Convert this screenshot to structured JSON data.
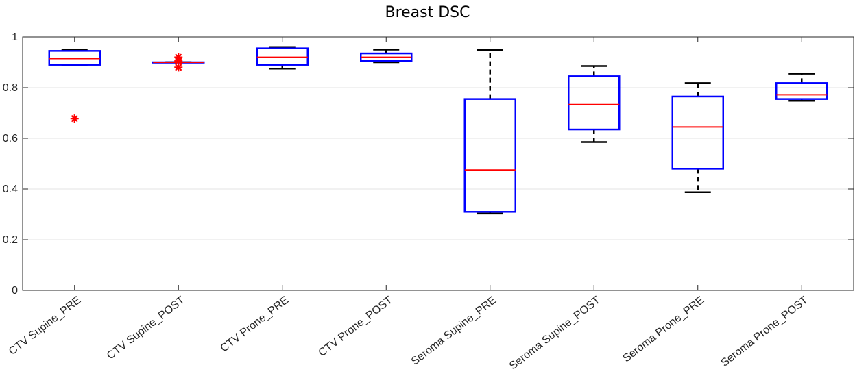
{
  "chart_data": {
    "type": "box",
    "title": "Breast DSC",
    "xlabel": "",
    "ylabel": "",
    "ylim": [
      0,
      1
    ],
    "yticks": [
      0,
      0.2,
      0.4,
      0.6,
      0.8,
      1
    ],
    "ytick_labels": [
      "0",
      "0.2",
      "0.4",
      "0.6",
      "0.8",
      "1"
    ],
    "grid": "horizontal",
    "categories": [
      "CTV Supine_PRE",
      "CTV Supine_POST",
      "CTV Prone_PRE",
      "CTV Prone_POST",
      "Seroma Supine_PRE",
      "Seroma Supine_POST",
      "Seroma Prone_PRE",
      "Seroma Prone_POST"
    ],
    "boxes": [
      {
        "whisker_low": 0.89,
        "q1": 0.89,
        "median": 0.915,
        "q3": 0.945,
        "whisker_high": 0.948,
        "outliers": [
          0.678
        ]
      },
      {
        "whisker_low": 0.9,
        "q1": 0.9,
        "median": 0.9,
        "q3": 0.9,
        "whisker_high": 0.9,
        "outliers": [
          0.92,
          0.905,
          0.88
        ]
      },
      {
        "whisker_low": 0.875,
        "q1": 0.89,
        "median": 0.92,
        "q3": 0.955,
        "whisker_high": 0.96,
        "outliers": []
      },
      {
        "whisker_low": 0.9,
        "q1": 0.905,
        "median": 0.92,
        "q3": 0.935,
        "whisker_high": 0.95,
        "outliers": []
      },
      {
        "whisker_low": 0.303,
        "q1": 0.31,
        "median": 0.475,
        "q3": 0.755,
        "whisker_high": 0.948,
        "outliers": []
      },
      {
        "whisker_low": 0.585,
        "q1": 0.635,
        "median": 0.733,
        "q3": 0.845,
        "whisker_high": 0.885,
        "outliers": []
      },
      {
        "whisker_low": 0.387,
        "q1": 0.48,
        "median": 0.645,
        "q3": 0.765,
        "whisker_high": 0.818,
        "outliers": []
      },
      {
        "whisker_low": 0.748,
        "q1": 0.755,
        "median": 0.772,
        "q3": 0.818,
        "whisker_high": 0.855,
        "outliers": []
      }
    ],
    "colors": {
      "box": "#0000ff",
      "median": "#ff0000",
      "whisker": "#000000",
      "outlier": "#ff0000",
      "grid": "#e3e3e3",
      "axis": "#262626"
    }
  }
}
